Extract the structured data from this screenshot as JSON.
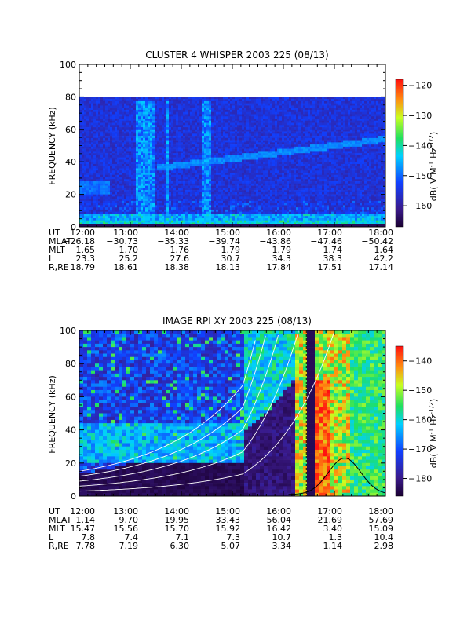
{
  "chart_data": [
    {
      "type": "heatmap",
      "title": "CLUSTER 4 WHISPER 2003 225 (08/13)",
      "ylabel": "FREQUENCY (kHz)",
      "ylim": [
        0,
        100
      ],
      "y_ticks": [
        "0",
        "20",
        "40",
        "60",
        "80",
        "100"
      ],
      "xlim": [
        "12:00",
        "18:00"
      ],
      "data_top_khz": 80,
      "colorbar": {
        "label": "dB( V M⁻¹ Hz⁻¹ᐟ²)",
        "label_text": "dB( V M",
        "range": [
          -167,
          -118
        ],
        "ticks": [
          "-120",
          "-130",
          "-140",
          "-150",
          "-160"
        ]
      },
      "ephemeris": {
        "rows": [
          {
            "name": "UT",
            "values": [
              "12:00",
              "13:00",
              "14:00",
              "15:00",
              "16:00",
              "17:00",
              "18:00"
            ]
          },
          {
            "name": "MLAT",
            "values": [
              "-26.18",
              "-30.73",
              "-35.33",
              "-39.74",
              "-43.86",
              "-47.46",
              "-50.42"
            ]
          },
          {
            "name": "MLT",
            "values": [
              "1.65",
              "1.70",
              "1.76",
              "1.79",
              "1.79",
              "1.74",
              "1.64"
            ]
          },
          {
            "name": "L",
            "values": [
              "23.3",
              "25.2",
              "27.6",
              "30.7",
              "34.3",
              "38.3",
              "42.2"
            ]
          },
          {
            "name": "R,RE",
            "values": [
              "18.79",
              "18.61",
              "18.38",
              "18.13",
              "17.84",
              "17.51",
              "17.14"
            ]
          }
        ]
      }
    },
    {
      "type": "heatmap",
      "title": "IMAGE RPI XY 2003 225 (08/13)",
      "ylabel": "FREQUENCY (kHz)",
      "ylim": [
        0,
        100
      ],
      "y_ticks": [
        "0",
        "20",
        "40",
        "60",
        "80",
        "100"
      ],
      "xlim": [
        "12:00",
        "18:00"
      ],
      "colorbar": {
        "label_text": "dB( V M",
        "range": [
          -186,
          -135
        ],
        "ticks": [
          "-140",
          "-150",
          "-160",
          "-170",
          "-180"
        ]
      },
      "ephemeris": {
        "rows": [
          {
            "name": "UT",
            "values": [
              "12:00",
              "13:00",
              "14:00",
              "15:00",
              "16:00",
              "17:00",
              "18:00"
            ]
          },
          {
            "name": "MLAT",
            "values": [
              "1.14",
              "9.70",
              "19.95",
              "33.43",
              "56.04",
              "21.69",
              "-57.69"
            ]
          },
          {
            "name": "MLT",
            "values": [
              "15.47",
              "15.56",
              "15.70",
              "15.92",
              "16.42",
              "3.40",
              "15.09"
            ]
          },
          {
            "name": "L",
            "values": [
              "7.8",
              "7.4",
              "7.1",
              "7.3",
              "10.7",
              "1.3",
              "10.4"
            ]
          },
          {
            "name": "R,RE",
            "values": [
              "7.78",
              "7.19",
              "6.30",
              "5.07",
              "3.34",
              "1.14",
              "2.98"
            ]
          }
        ]
      }
    }
  ]
}
